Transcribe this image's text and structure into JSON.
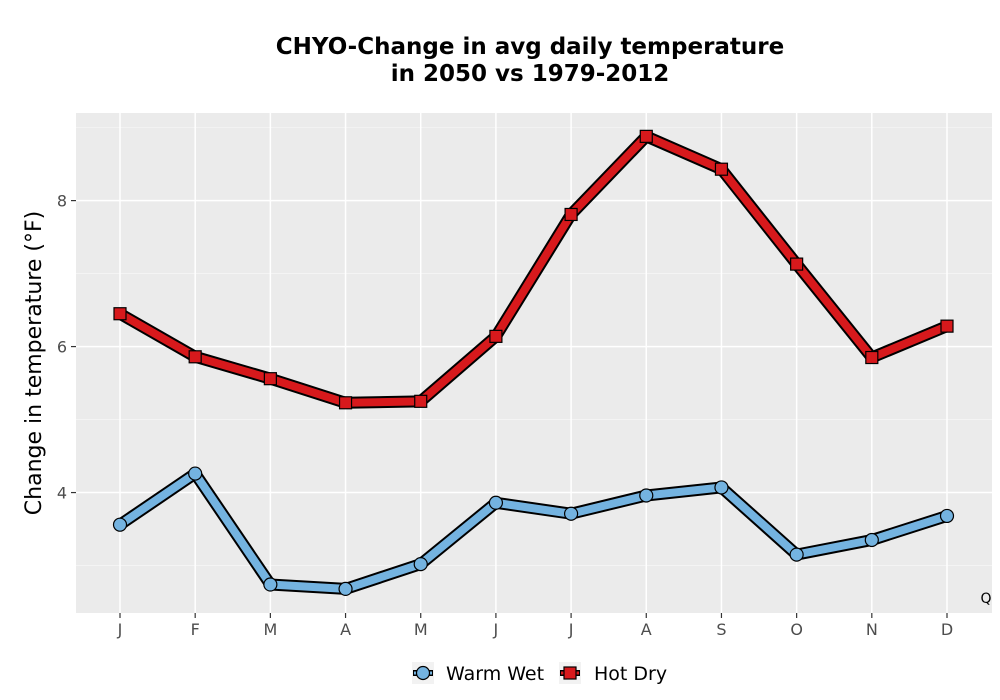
{
  "chart_data": {
    "type": "line",
    "title_lines": [
      "CHYO-Change in avg daily temperature",
      "in 2050 vs 1979-2012"
    ],
    "xlabel": "",
    "ylabel": "Change in temperature (°F)",
    "categories": [
      "J",
      "F",
      "M",
      "A",
      "M",
      "J",
      "J",
      "A",
      "S",
      "O",
      "N",
      "D"
    ],
    "ylim": [
      2.35,
      9.2
    ],
    "yticks": [
      4,
      6,
      8
    ],
    "grid": true,
    "legend_position": "bottom",
    "series": [
      {
        "name": "Warm Wet",
        "marker": "circle",
        "color": "#74b3e0",
        "values": [
          3.56,
          4.26,
          2.74,
          2.68,
          3.02,
          3.86,
          3.71,
          3.96,
          4.07,
          3.15,
          3.35,
          3.68
        ]
      },
      {
        "name": "Hot Dry",
        "marker": "square",
        "color": "#d7191c",
        "values": [
          6.45,
          5.86,
          5.56,
          5.23,
          5.25,
          6.14,
          7.81,
          8.88,
          8.43,
          7.13,
          5.85,
          6.28
        ]
      }
    ],
    "corner_label": "Q"
  }
}
